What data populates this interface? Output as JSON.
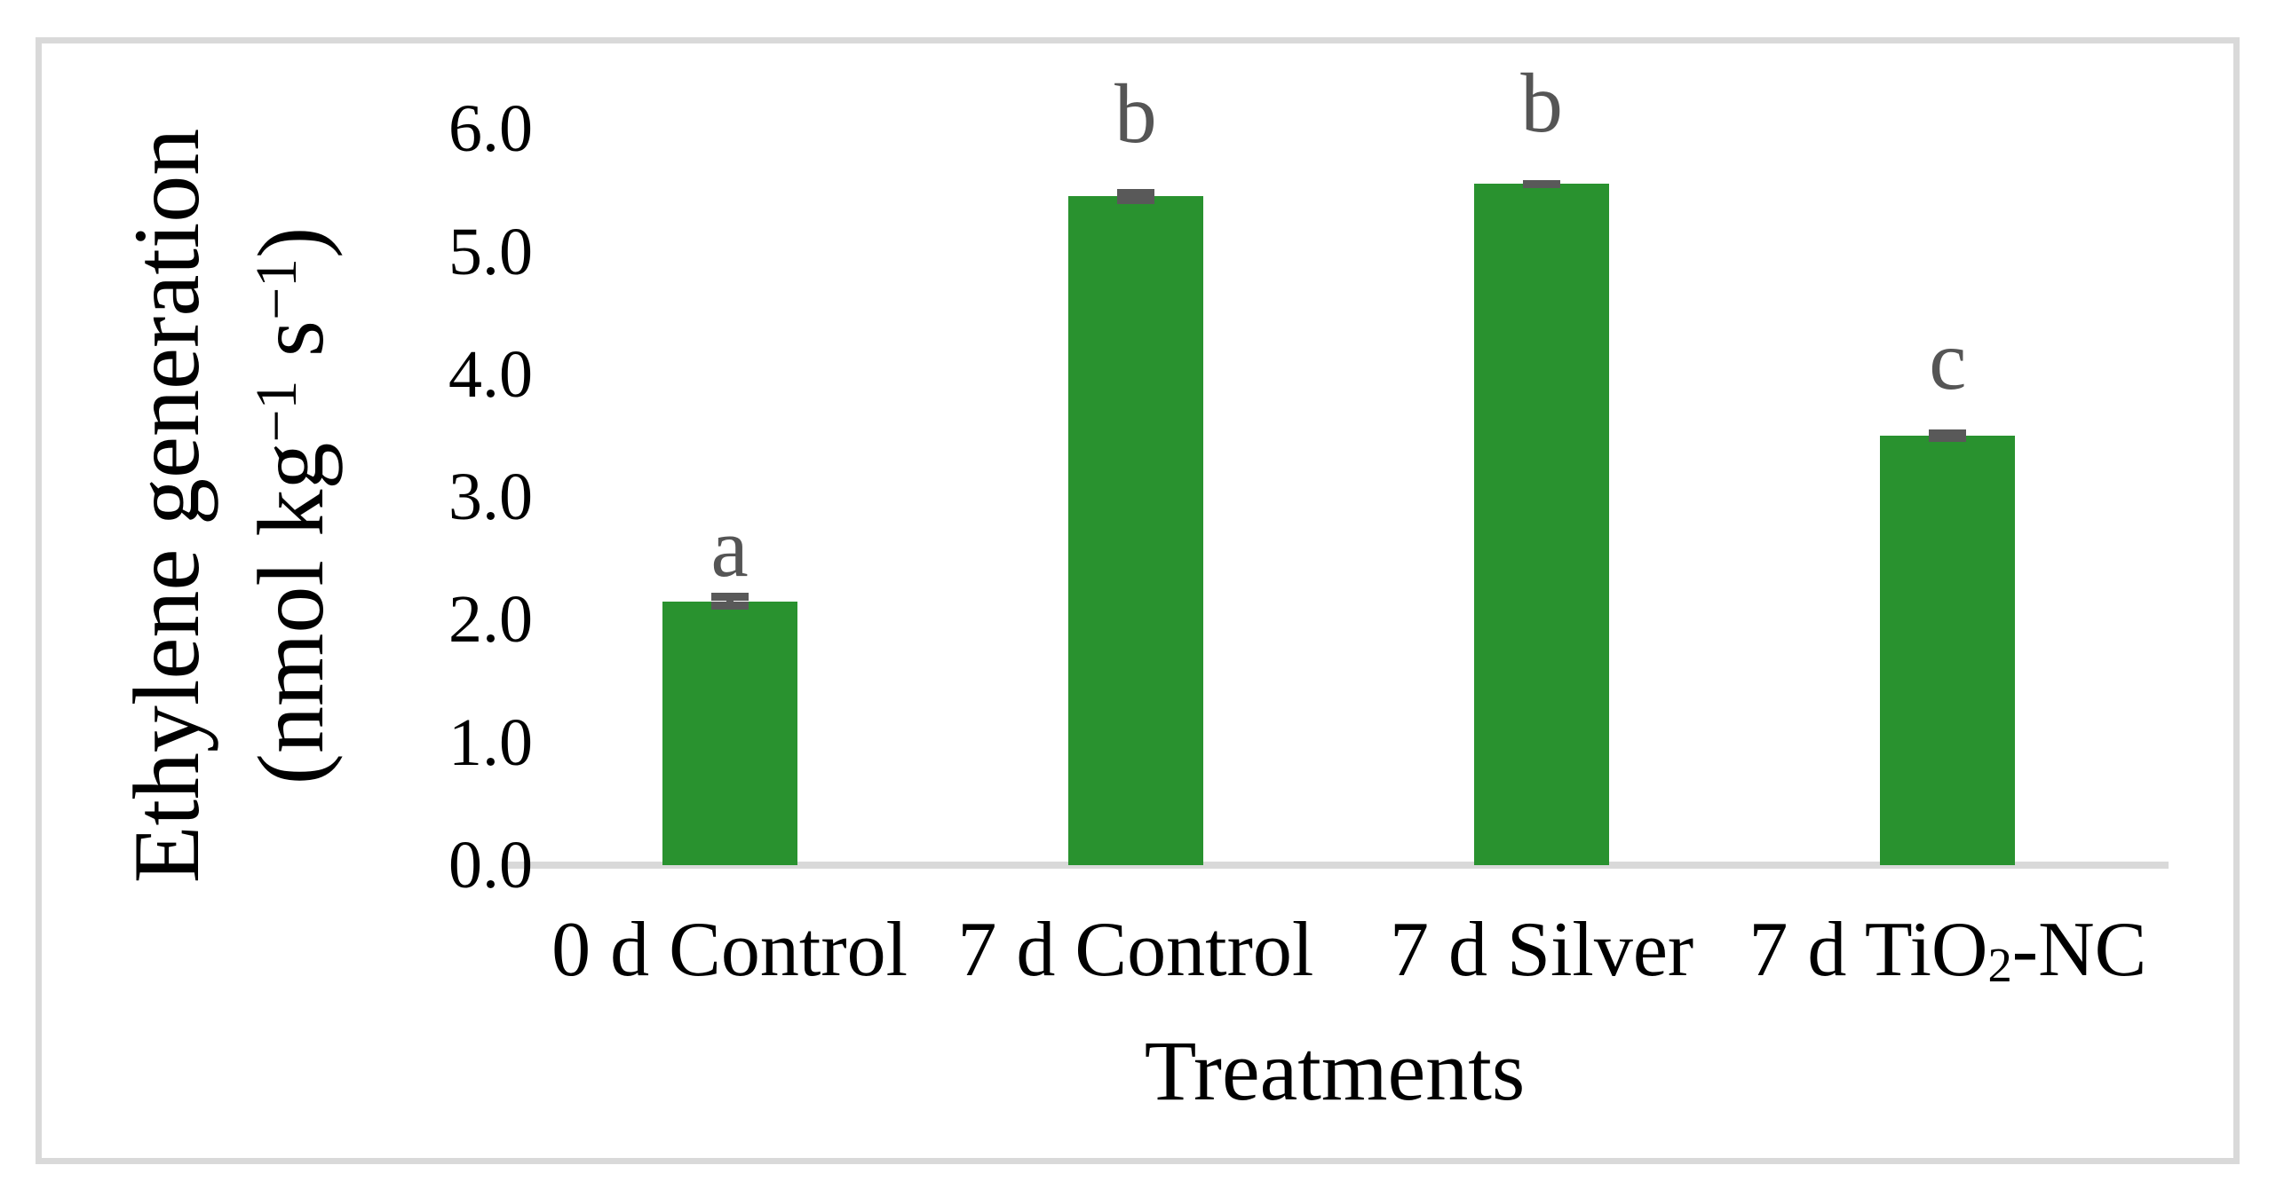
{
  "chart_data": {
    "type": "bar",
    "title": "",
    "xlabel": "Treatments",
    "ylabel": "Ethylene generation (nmol kg⁻¹ s⁻¹)",
    "ylabel_lines": [
      "Ethylene generation",
      "(nmol kg⁻¹ s⁻¹)"
    ],
    "categories": [
      "0 d Control",
      "7 d Control",
      "7 d Silver",
      "7 d TiO₂-NC"
    ],
    "values": [
      2.15,
      5.45,
      5.55,
      3.5
    ],
    "errors": [
      0.07,
      0.06,
      0.03,
      0.05
    ],
    "sig_letters": [
      "a",
      "b",
      "b",
      "c"
    ],
    "ylim": [
      0,
      6
    ],
    "ytick_interval": 1.0,
    "ytick_labels": [
      "0.0",
      "1.0",
      "2.0",
      "3.0",
      "4.0",
      "5.0",
      "6.0"
    ],
    "grid": false,
    "legend": "none",
    "colors": {
      "bar": "#29922F",
      "error_bar": "#595959",
      "sig_letter": "#555555",
      "axis_line": "#D9D9D9",
      "frame_border": "#D9D9D9",
      "text": "#000000",
      "background": "#FFFFFF"
    }
  }
}
